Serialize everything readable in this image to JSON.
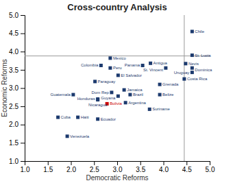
{
  "chart_data": {
    "type": "scatter",
    "title": "Cross-country Analysis",
    "x_label": "Democratic Reforms",
    "y_label": "Economic Reforms",
    "labels": [
      "Chile",
      "St. Lucia",
      "Nevis",
      "Dominica",
      "Uruguay",
      "Costa Rica",
      "Mexico",
      "Colombia",
      "Peru",
      "Antigua",
      "Panama",
      "St. Vincent",
      "El Salvador",
      "Paraguay",
      "Grenada",
      "Dom Rep",
      "Jamaica",
      "Guyana",
      "Brazil",
      "Belize",
      "Guatemala",
      "Honduras",
      "Nicaragua",
      "Bolivia",
      "Argentina",
      "Suriname",
      "Cuba",
      "Haiti",
      "Ecuador",
      "Venezuela"
    ],
    "x": [
      4.62,
      4.62,
      4.48,
      4.62,
      4.62,
      4.45,
      2.85,
      2.65,
      2.85,
      3.72,
      3.55,
      4.05,
      3.02,
      2.52,
      3.92,
      2.88,
      3.15,
      3.02,
      3.28,
      3.92,
      2.05,
      2.58,
      2.58,
      2.78,
      3.18,
      3.7,
      1.72,
      2.15,
      2.58,
      1.92
    ],
    "values": [
      4.55,
      3.9,
      3.67,
      3.55,
      3.43,
      3.25,
      3.82,
      3.62,
      3.55,
      3.68,
      3.62,
      3.55,
      3.35,
      3.18,
      3.1,
      2.88,
      2.95,
      2.78,
      2.82,
      2.82,
      2.82,
      2.7,
      2.68,
      2.57,
      2.6,
      2.42,
      2.2,
      2.2,
      2.15,
      1.68
    ],
    "colors": [
      "#1c3a6e",
      "#1c3a6e",
      "#1c3a6e",
      "#1c3a6e",
      "#1c3a6e",
      "#1c3a6e",
      "#1c3a6e",
      "#1c3a6e",
      "#1c3a6e",
      "#1c3a6e",
      "#1c3a6e",
      "#1c3a6e",
      "#1c3a6e",
      "#1c3a6e",
      "#1c3a6e",
      "#1c3a6e",
      "#1c3a6e",
      "#1c3a6e",
      "#1c3a6e",
      "#1c3a6e",
      "#1c3a6e",
      "#1c3a6e",
      "#1c3a6e",
      "#cc0000",
      "#1c3a6e",
      "#1c3a6e",
      "#1c3a6e",
      "#1c3a6e",
      "#1c3a6e",
      "#1c3a6e"
    ],
    "reference_lines": {
      "x": 4.45,
      "y": 3.88
    },
    "xlim": [
      1.0,
      5.0
    ],
    "ylim": [
      1.0,
      5.0
    ],
    "xticks": [
      {
        "value": 1,
        "label": "1.0"
      },
      1.5,
      {
        "value": 2,
        "label": "2.0"
      },
      2.5,
      {
        "value": 3,
        "label": "3.0"
      },
      3.5,
      {
        "value": 4,
        "label": "4.0"
      },
      4.5,
      {
        "value": 5,
        "label": "5.0"
      }
    ],
    "yticks": [
      {
        "value": 1,
        "label": "1.0"
      },
      1.5,
      {
        "value": 2,
        "label": "2.0"
      },
      2.5,
      {
        "value": 3,
        "label": "3.0"
      },
      3.5,
      {
        "value": 4,
        "label": "4.0"
      },
      4.5,
      {
        "value": 5,
        "label": "5.0"
      }
    ],
    "grid": false
  }
}
